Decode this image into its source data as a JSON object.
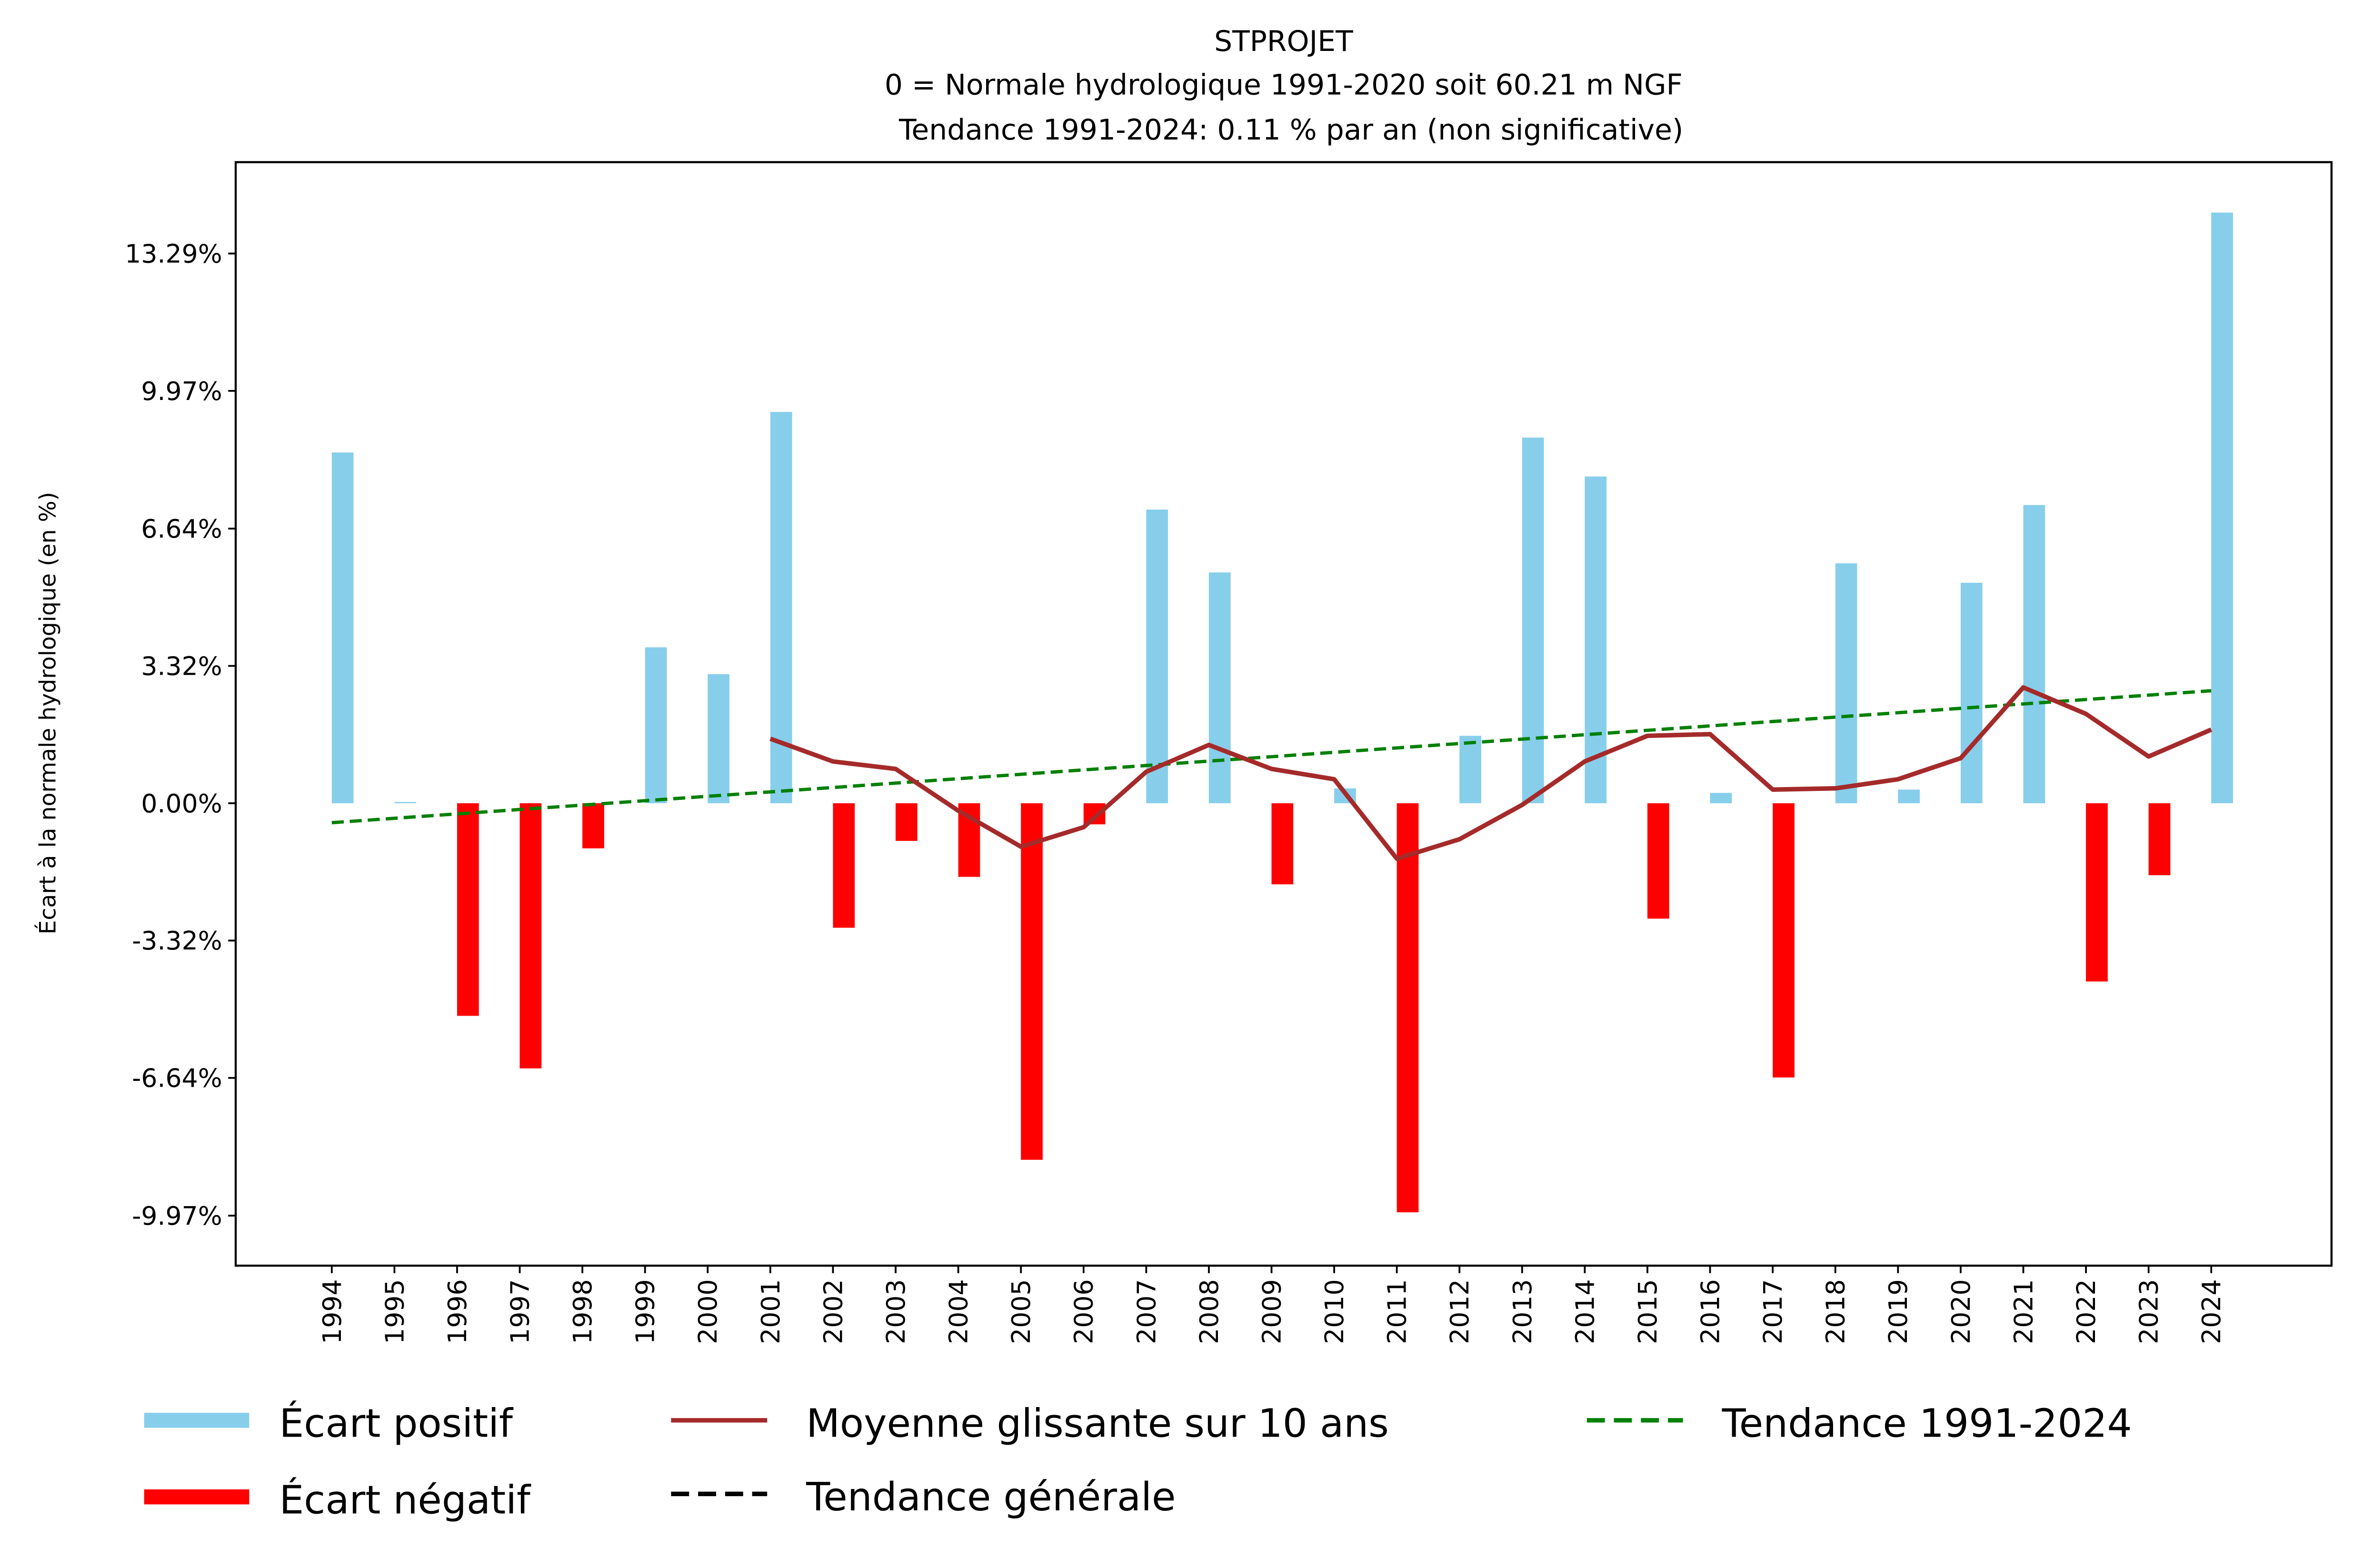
{
  "chart_data": {
    "type": "bar",
    "title": "STPROJET",
    "subtitle_lines": [
      "0 = Normale hydrologique 1991-2020 soit 60.21 m NGF",
      "Tendance 1991-2024: 0.11 % par an (non significative)"
    ],
    "xlabel": "",
    "ylabel": "Écart à la normale hydrologique (en %)",
    "ylim": [
      -11.2,
      14.9
    ],
    "yticks": [
      13.29,
      9.97,
      6.64,
      3.32,
      0.0,
      -3.32,
      -6.64,
      -9.97
    ],
    "ytick_labels": [
      "13.29%",
      "9.97%",
      "6.64%",
      "3.32%",
      "0.00%",
      "-3.32%",
      "-6.64%",
      "-9.97%"
    ],
    "categories": [
      "1994",
      "1995",
      "1996",
      "1997",
      "1998",
      "1999",
      "2000",
      "2001",
      "2002",
      "2003",
      "2004",
      "2005",
      "2006",
      "2007",
      "2008",
      "2009",
      "2010",
      "2011",
      "2012",
      "2013",
      "2014",
      "2015",
      "2016",
      "2017",
      "2018",
      "2019",
      "2020",
      "2021",
      "2022",
      "2023",
      "2024"
    ],
    "values": [
      8.48,
      0.03,
      -5.14,
      -6.41,
      -1.09,
      3.77,
      3.12,
      9.46,
      -3.01,
      -0.91,
      -1.78,
      -8.62,
      -0.51,
      7.1,
      5.58,
      -1.96,
      0.36,
      -9.89,
      1.63,
      8.84,
      7.9,
      -2.79,
      0.25,
      -6.63,
      5.8,
      0.33,
      5.33,
      7.21,
      -4.31,
      -1.74,
      14.28
    ],
    "series": [
      {
        "name": "Moyenne glissante sur 10 ans",
        "type": "line",
        "color": "#a52a2a",
        "start_index": 7,
        "values": [
          1.56,
          1.01,
          0.83,
          -0.18,
          -1.05,
          -0.58,
          0.76,
          1.41,
          0.83,
          0.58,
          -1.34,
          -0.87,
          -0.04,
          1.01,
          1.63,
          1.67,
          0.33,
          0.36,
          0.58,
          1.09,
          2.8,
          2.16,
          1.13,
          1.78
        ]
      },
      {
        "name": "Tendance 1991-2024",
        "type": "line",
        "style": "dashed",
        "color": "#008000",
        "start_value": -0.47,
        "end_value": 2.72
      }
    ],
    "legend": [
      {
        "label": "Écart positif",
        "kind": "patch",
        "color": "#87ceeb"
      },
      {
        "label": "Écart négatif",
        "kind": "patch",
        "color": "#ff0000"
      },
      {
        "label": "Moyenne glissante sur 10 ans",
        "kind": "line",
        "color": "#a52a2a"
      },
      {
        "label": "Tendance générale",
        "kind": "dashed",
        "color": "#000000"
      },
      {
        "label": "Tendance 1991-2024",
        "kind": "dashed",
        "color": "#008000"
      }
    ],
    "legend_position": "bottom",
    "colors": {
      "positive": "#87ceeb",
      "negative": "#ff0000"
    },
    "grid": false
  }
}
